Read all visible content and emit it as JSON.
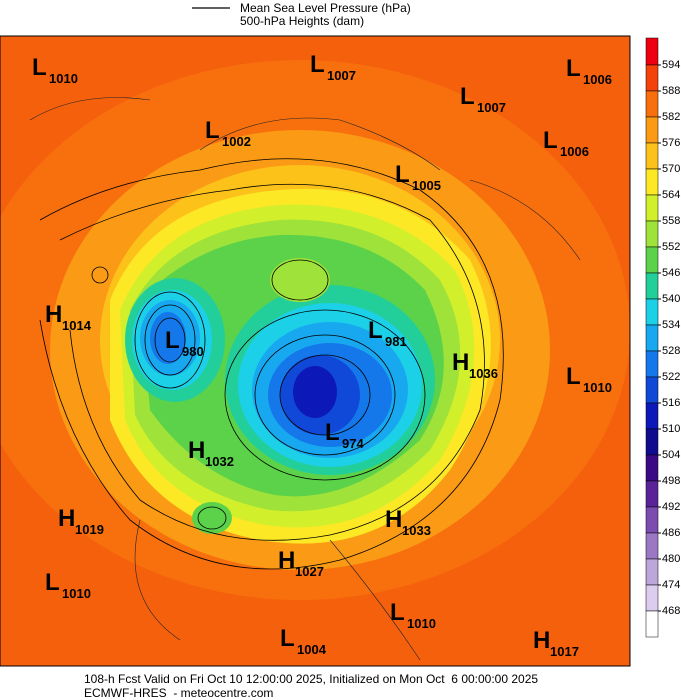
{
  "legend": {
    "line_label": "Mean Sea Level Pressure (hPa)",
    "fill_label": "500-hPa Heights (dam)"
  },
  "colorbar": {
    "ticks": [
      594,
      588,
      582,
      576,
      570,
      564,
      558,
      552,
      546,
      540,
      534,
      528,
      522,
      516,
      510,
      504,
      498,
      492,
      486,
      480,
      474,
      468
    ],
    "colors": [
      "#ee0010",
      "#f5420a",
      "#f8700e",
      "#fb9a14",
      "#fdc21a",
      "#fde826",
      "#d2ef2c",
      "#9ee23a",
      "#5cd24a",
      "#22cf9a",
      "#1cd0e8",
      "#18a8f0",
      "#1478ea",
      "#1048d8",
      "#0c18b8",
      "#100c90",
      "#3a0a84",
      "#5a2498",
      "#7c4cb0",
      "#9c78c4",
      "#bca6da",
      "#dccced",
      "#ffffff"
    ]
  },
  "centers": [
    {
      "letter": "L",
      "value": 1010
    },
    {
      "letter": "L",
      "value": 1007
    },
    {
      "letter": "L",
      "value": 1006
    },
    {
      "letter": "L",
      "value": 1007
    },
    {
      "letter": "L",
      "value": 1002
    },
    {
      "letter": "L",
      "value": 1006
    },
    {
      "letter": "L",
      "value": 1005
    },
    {
      "letter": "H",
      "value": 1014
    },
    {
      "letter": "L",
      "value": 980
    },
    {
      "letter": "L",
      "value": 981
    },
    {
      "letter": "H",
      "value": 1036
    },
    {
      "letter": "L",
      "value": 1010
    },
    {
      "letter": "H",
      "value": 1032
    },
    {
      "letter": "L",
      "value": 974
    },
    {
      "letter": "H",
      "value": 1019
    },
    {
      "letter": "H",
      "value": 1033
    },
    {
      "letter": "H",
      "value": 1027
    },
    {
      "letter": "L",
      "value": 1010
    },
    {
      "letter": "L",
      "value": 1010
    },
    {
      "letter": "L",
      "value": 1004
    },
    {
      "letter": "H",
      "value": 1017
    }
  ],
  "footer": {
    "line1": "108-h Fcst Valid on Fri Oct 10 12:00:00 2025, Initialized on Mon Oct  6 00:00:00 2025",
    "line2": "ECMWF-HRES  - meteocentre.com"
  }
}
